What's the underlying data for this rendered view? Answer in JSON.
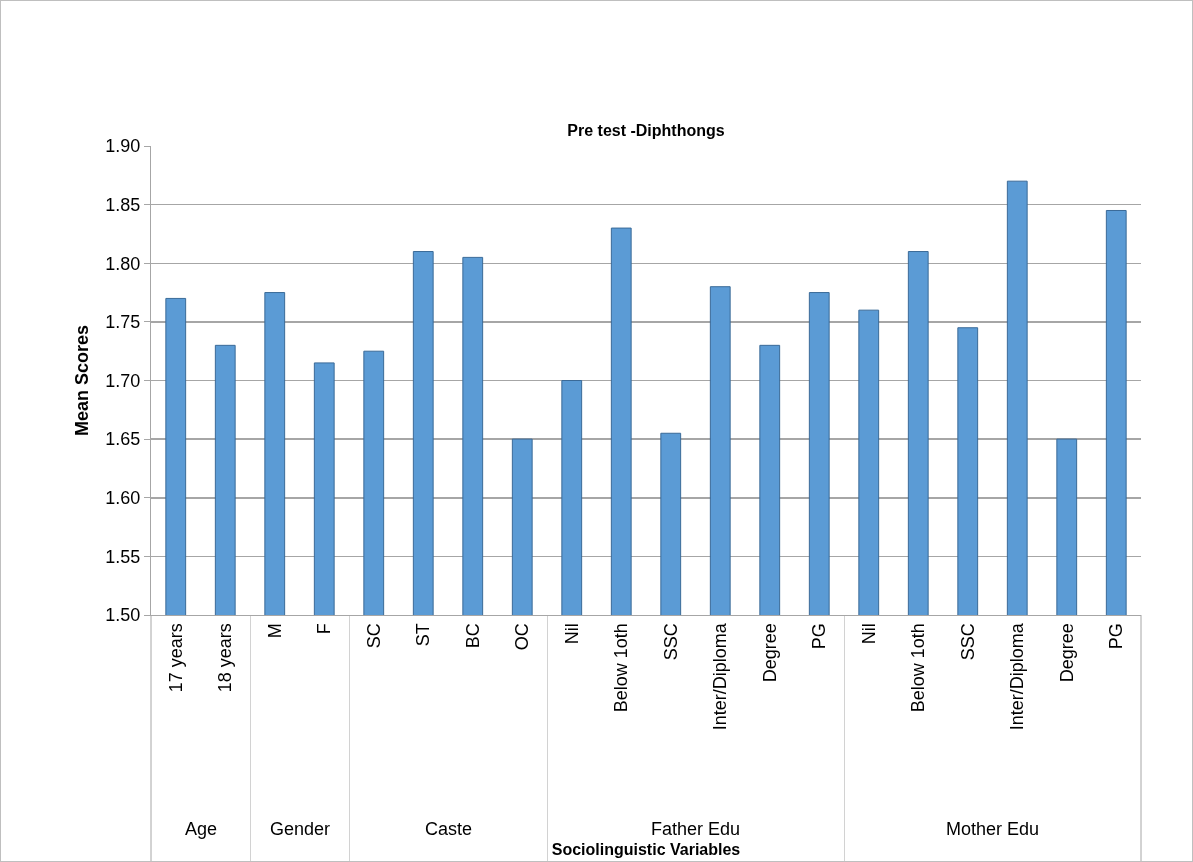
{
  "chart_data": [
    {
      "type": "bar",
      "xlabel": "Age",
      "ylabel": "Mean Scores",
      "categories": [
        "17 years",
        "18 years"
      ],
      "values": [
        1.77,
        1.73
      ],
      "color": "#5b9bd5",
      "ylim": [
        1.5,
        1.9
      ],
      "yticks": [
        {
          "value": 1.5,
          "label": "1.50"
        },
        {
          "value": 1.55,
          "label": "1.55"
        },
        {
          "value": 1.6,
          "label": "1.60"
        },
        {
          "value": 1.65,
          "label": "1.65"
        },
        {
          "value": 1.7,
          "label": "1.70"
        },
        {
          "value": 1.75,
          "label": "1.75"
        },
        {
          "value": 1.8,
          "label": "1.80"
        },
        {
          "value": 1.85,
          "label": "1.85"
        },
        {
          "value": 1.9,
          "label": "1.90"
        }
      ],
      "grid": "y"
    },
    {
      "type": "bar",
      "xlabel": "Gender",
      "categories": [
        "M",
        "F"
      ],
      "values": [
        1.775,
        1.715
      ],
      "color": "#5b9bd5",
      "ylim": [
        1.5,
        1.9
      ],
      "yticks": [
        1.5,
        1.55,
        1.6,
        1.65,
        1.7,
        1.75,
        1.8,
        1.85,
        1.9
      ],
      "grid": "y",
      "tick_labels": "x"
    },
    {
      "type": "bar",
      "xlabel": "Caste",
      "categories": [
        "SC",
        "ST",
        "BC",
        "OC"
      ],
      "values": [
        1.725,
        1.81,
        1.805,
        1.65
      ],
      "color": "#5b9bd5",
      "ylim": [
        1.5,
        1.9
      ],
      "yticks": [
        1.5,
        1.55,
        1.6,
        1.65,
        1.7,
        1.75,
        1.8,
        1.85,
        1.9
      ],
      "grid": "y",
      "tick_labels": "x"
    },
    {
      "type": "bar",
      "title": "Pre test -Diphthongs",
      "xlabel": "Father Edu",
      "annotations": [
        "Sociolinguistic Variables"
      ],
      "categories": [
        "Nil",
        "Below 1oth",
        "SSC",
        "Inter/Diploma",
        "Degree",
        "PG"
      ],
      "values": [
        1.7,
        1.83,
        1.655,
        1.78,
        1.73,
        1.775
      ],
      "color": "#5b9bd5",
      "ylim": [
        1.5,
        1.9
      ],
      "yticks": [
        1.5,
        1.55,
        1.6,
        1.65,
        1.7,
        1.75,
        1.8,
        1.85,
        1.9
      ],
      "grid": "y",
      "tick_labels": "x"
    },
    {
      "type": "bar",
      "xlabel": "Mother Edu",
      "categories": [
        "Nil",
        "Below 1oth",
        "SSC",
        "Inter/Diploma",
        "Degree",
        "PG"
      ],
      "values": [
        1.76,
        1.81,
        1.745,
        1.87,
        1.65,
        1.845
      ],
      "color": "#5b9bd5",
      "ylim": [
        1.5,
        1.9
      ],
      "yticks": [
        1.5,
        1.55,
        1.6,
        1.65,
        1.7,
        1.75,
        1.8,
        1.85,
        1.9
      ],
      "grid": "y",
      "tick_labels": "x"
    }
  ]
}
